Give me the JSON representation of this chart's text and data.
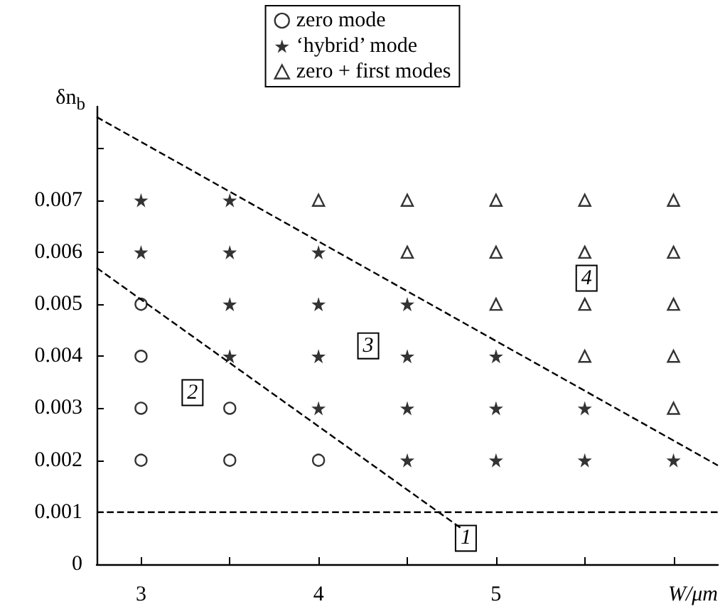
{
  "chart_data": {
    "type": "scatter",
    "xlabel": "W/μm",
    "ylabel": "δn$_{b}$",
    "xlim": [
      2.75,
      6.25
    ],
    "xticks": [
      3,
      {
        "value": 3.5,
        "label": null
      },
      4,
      {
        "value": 4.5,
        "label": null
      },
      5,
      {
        "value": 5.5,
        "label": null
      },
      {
        "value": 6,
        "label": null
      }
    ],
    "ylim": [
      0,
      0.0088
    ],
    "yticks": [
      0,
      0.001,
      0.002,
      0.003,
      0.004,
      0.005,
      0.006,
      0.007,
      {
        "value": 0.008,
        "label": null
      }
    ],
    "grid": false,
    "legend": "top",
    "series": [
      {
        "name": "zero mode",
        "marker": "circle",
        "color": "#000000",
        "x": [
          3,
          3,
          3,
          3,
          3.5,
          3.5,
          4
        ],
        "values": [
          0.002,
          0.003,
          0.004,
          0.005,
          0.002,
          0.003,
          0.002
        ]
      },
      {
        "name": "‘hybrid’ mode",
        "marker": "star",
        "color": "#000000",
        "x": [
          3,
          3,
          3.5,
          3.5,
          3.5,
          3.5,
          4,
          4,
          4,
          4,
          4.5,
          4.5,
          4.5,
          4.5,
          5,
          5,
          5,
          5.5,
          5.5,
          6
        ],
        "values": [
          0.006,
          0.007,
          0.004,
          0.005,
          0.006,
          0.007,
          0.003,
          0.004,
          0.005,
          0.006,
          0.002,
          0.003,
          0.004,
          0.005,
          0.002,
          0.003,
          0.004,
          0.002,
          0.003,
          0.002
        ]
      },
      {
        "name": "zero + first modes",
        "marker": "triangle",
        "color": "#000000",
        "x": [
          4,
          4.5,
          4.5,
          5,
          5,
          5,
          5.5,
          5.5,
          5.5,
          5.5,
          6,
          6,
          6,
          6,
          6
        ],
        "values": [
          0.007,
          0.006,
          0.007,
          0.005,
          0.006,
          0.007,
          0.004,
          0.005,
          0.006,
          0.007,
          0.003,
          0.004,
          0.005,
          0.006,
          0.007
        ]
      },
      {
        "type": "line",
        "line_style": "dashed",
        "marker": "none",
        "color": "#000000",
        "x": [
          2.75,
          4.8
        ],
        "values": [
          0.0057,
          0.0007
        ]
      },
      {
        "type": "line",
        "line_style": "dashed",
        "marker": "none",
        "color": "#000000",
        "x": [
          2.75,
          6.25
        ],
        "values": [
          0.0086,
          0.0019
        ]
      }
    ],
    "ref_lines": [
      {
        "axis": "y",
        "value": 0.001,
        "label": null,
        "color": "#000000",
        "line_style": "dashed"
      }
    ],
    "annotations": [
      {
        "text": "1",
        "x": 4.83,
        "y": 0.0005
      },
      {
        "text": "2",
        "x": 3.29,
        "y": 0.0033
      },
      {
        "text": "3",
        "x": 4.28,
        "y": 0.0042
      },
      {
        "text": "4",
        "x": 5.51,
        "y": 0.0055
      }
    ]
  }
}
